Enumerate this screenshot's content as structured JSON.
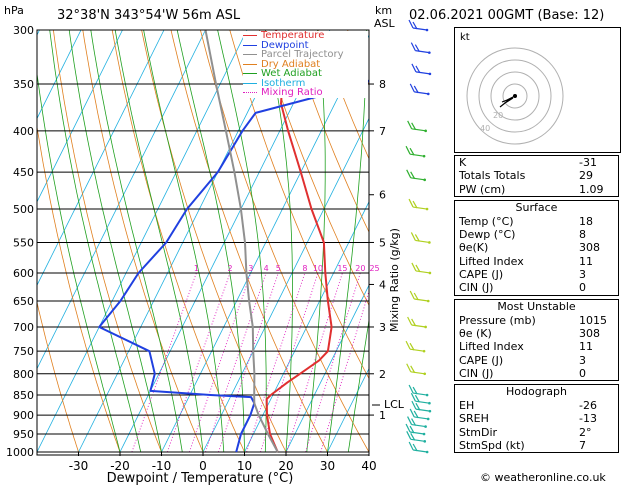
{
  "header": {
    "units_left": "hPa",
    "location": "32°38'N  343°54'W  56m  ASL",
    "units_right_km": "km",
    "units_right_asl": "ASL",
    "datetime": "02.06.2021  00GMT  (Base: 12)"
  },
  "skewt": {
    "xlabel": "Dewpoint / Temperature (°C)",
    "ylabel_right": "Mixing Ratio (g/kg)",
    "lcl_label": "LCL",
    "legend": [
      {
        "name": "Temperature",
        "color": "#e03030",
        "style": "solid"
      },
      {
        "name": "Dewpoint",
        "color": "#2040e0",
        "style": "solid"
      },
      {
        "name": "Parcel Trajectory",
        "color": "#909090",
        "style": "solid"
      },
      {
        "name": "Dry Adiabat",
        "color": "#e08020",
        "style": "solid"
      },
      {
        "name": "Wet Adiabat",
        "color": "#20a020",
        "style": "solid"
      },
      {
        "name": "Isotherm",
        "color": "#20b0e0",
        "style": "solid"
      },
      {
        "name": "Mixing Ratio",
        "color": "#e020c0",
        "style": "dotted"
      }
    ]
  },
  "chart_data": {
    "type": "line",
    "pressure_ticks": [
      300,
      350,
      400,
      450,
      500,
      550,
      600,
      650,
      700,
      750,
      800,
      850,
      900,
      950,
      1000
    ],
    "temperature_ticks": [
      -30,
      -20,
      -10,
      0,
      10,
      20,
      30,
      40
    ],
    "xlim": [
      -40,
      40
    ],
    "ylim": [
      1000,
      300
    ],
    "y_scale": "log",
    "km_ticks": [
      {
        "km": "8",
        "p": 350
      },
      {
        "km": "7",
        "p": 400
      },
      {
        "km": "6",
        "p": 480
      },
      {
        "km": "5",
        "p": 550
      },
      {
        "km": "4",
        "p": 620
      },
      {
        "km": "3",
        "p": 700
      },
      {
        "km": "2",
        "p": 800
      },
      {
        "km": "1",
        "p": 900
      }
    ],
    "mixing_ratio_labels": [
      "1",
      "2",
      "3",
      "4",
      "5",
      "8",
      "10",
      "15",
      "20",
      "25"
    ],
    "mixing_ratio_values": [
      1,
      2,
      3,
      4,
      5,
      8,
      10,
      15,
      20,
      25
    ],
    "lcl_pressure": 870,
    "series": [
      {
        "name": "Temperature",
        "color": "#e03030",
        "points": [
          [
            1000,
            18
          ],
          [
            950,
            14
          ],
          [
            900,
            11
          ],
          [
            860,
            9
          ],
          [
            850,
            9.5
          ],
          [
            820,
            12
          ],
          [
            800,
            14
          ],
          [
            770,
            17
          ],
          [
            750,
            18
          ],
          [
            700,
            16
          ],
          [
            650,
            12
          ],
          [
            600,
            8
          ],
          [
            550,
            4
          ],
          [
            500,
            -3
          ],
          [
            450,
            -10
          ],
          [
            400,
            -18
          ],
          [
            370,
            -23
          ],
          [
            350,
            -25
          ],
          [
            320,
            -30
          ],
          [
            300,
            -33
          ]
        ]
      },
      {
        "name": "Dewpoint",
        "color": "#2040e0",
        "points": [
          [
            1000,
            8
          ],
          [
            950,
            7
          ],
          [
            900,
            7
          ],
          [
            870,
            6.5
          ],
          [
            855,
            5
          ],
          [
            850,
            -5
          ],
          [
            840,
            -20
          ],
          [
            800,
            -21
          ],
          [
            750,
            -25
          ],
          [
            700,
            -40
          ],
          [
            650,
            -38
          ],
          [
            600,
            -37
          ],
          [
            550,
            -34
          ],
          [
            500,
            -33
          ],
          [
            450,
            -30
          ],
          [
            400,
            -29
          ],
          [
            380,
            -28
          ],
          [
            350,
            -5
          ],
          [
            320,
            -1
          ],
          [
            310,
            -2
          ],
          [
            300,
            -5
          ]
        ]
      },
      {
        "name": "Parcel Trajectory",
        "color": "#909090",
        "points": [
          [
            1000,
            18
          ],
          [
            950,
            13.5
          ],
          [
            900,
            9
          ],
          [
            870,
            6.5
          ],
          [
            850,
            5.5
          ],
          [
            800,
            3
          ],
          [
            750,
            0
          ],
          [
            700,
            -3
          ],
          [
            650,
            -7
          ],
          [
            600,
            -11
          ],
          [
            550,
            -15
          ],
          [
            500,
            -20
          ],
          [
            450,
            -26
          ],
          [
            400,
            -33
          ],
          [
            350,
            -41
          ],
          [
            300,
            -50
          ]
        ]
      }
    ]
  },
  "hodograph": {
    "label": "kt",
    "ring_labels": [
      "20",
      "40"
    ]
  },
  "indices": {
    "top": [
      {
        "label": "K",
        "value": "-31"
      },
      {
        "label": "Totals Totals",
        "value": "29"
      },
      {
        "label": "PW (cm)",
        "value": "1.09"
      }
    ],
    "surface": {
      "title": "Surface",
      "rows": [
        {
          "label": "Temp (°C)",
          "value": "18"
        },
        {
          "label": "Dewp (°C)",
          "value": "8"
        },
        {
          "label": "θe(K)",
          "value": "308"
        },
        {
          "label": "Lifted Index",
          "value": "11"
        },
        {
          "label": "CAPE (J)",
          "value": "3"
        },
        {
          "label": "CIN (J)",
          "value": "0"
        }
      ]
    },
    "most_unstable": {
      "title": "Most Unstable",
      "rows": [
        {
          "label": "Pressure (mb)",
          "value": "1015"
        },
        {
          "label": "θe (K)",
          "value": "308"
        },
        {
          "label": "Lifted Index",
          "value": "11"
        },
        {
          "label": "CAPE (J)",
          "value": "3"
        },
        {
          "label": "CIN (J)",
          "value": "0"
        }
      ]
    },
    "hodograph_table": {
      "title": "Hodograph",
      "rows": [
        {
          "label": "EH",
          "value": "-26"
        },
        {
          "label": "SREH",
          "value": "-13"
        },
        {
          "label": "StmDir",
          "value": "2°"
        },
        {
          "label": "StmSpd (kt)",
          "value": "7"
        }
      ]
    }
  },
  "footer": {
    "copyright": "© weatheronline.co.uk"
  }
}
